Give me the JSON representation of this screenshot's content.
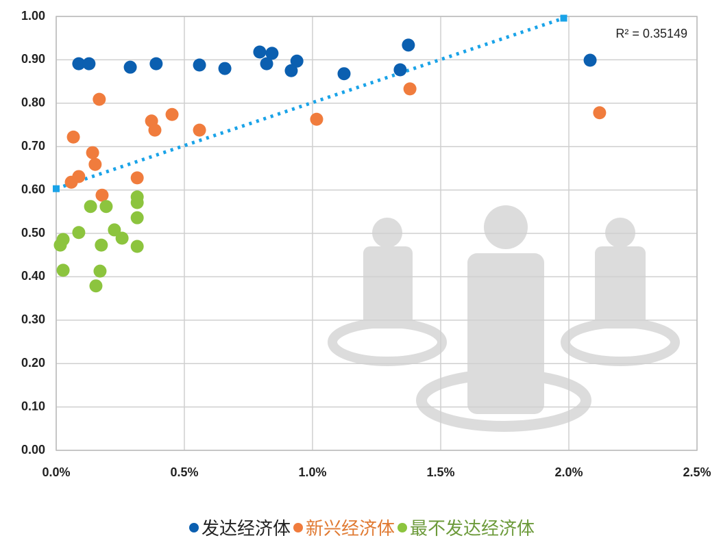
{
  "chart_data": {
    "type": "scatter",
    "xlim": [
      0,
      2.5
    ],
    "xticks": [
      {
        "value": 0,
        "label": "0.0%"
      },
      {
        "value": 0.5,
        "label": "0.5%"
      },
      {
        "value": 1,
        "label": "1.0%"
      },
      {
        "value": 1.5,
        "label": "1.5%"
      },
      {
        "value": 2,
        "label": "2.0%"
      },
      {
        "value": 2.5,
        "label": "2.5%"
      }
    ],
    "ylim": [
      0,
      1
    ],
    "yticks": [
      {
        "value": 0,
        "label": "0.00"
      },
      {
        "value": 0.1,
        "label": "0.10"
      },
      {
        "value": 0.2,
        "label": "0.20"
      },
      {
        "value": 0.3,
        "label": "0.30"
      },
      {
        "value": 0.4,
        "label": "0.40"
      },
      {
        "value": 0.5,
        "label": "0.50"
      },
      {
        "value": 0.6,
        "label": "0.60"
      },
      {
        "value": 0.7,
        "label": "0.70"
      },
      {
        "value": 0.8,
        "label": "0.80"
      },
      {
        "value": 0.9,
        "label": "0.90"
      },
      {
        "value": 1,
        "label": "1.00"
      }
    ],
    "grid": true,
    "legend": "bottom",
    "series": [
      {
        "name": "发达经济体",
        "color": "#0b5fb0",
        "text_color": "#222222",
        "x": [
          0.088,
          0.128,
          0.289,
          0.39,
          0.559,
          0.658,
          0.794,
          0.821,
          0.842,
          0.917,
          0.939,
          1.123,
          1.342,
          1.374,
          2.083
        ],
        "values": [
          0.891,
          0.891,
          0.883,
          0.891,
          0.888,
          0.88,
          0.918,
          0.891,
          0.915,
          0.875,
          0.897,
          0.868,
          0.877,
          0.934,
          0.899
        ]
      },
      {
        "name": "新兴经济体",
        "color": "#f07c3d",
        "text_color": "#e07a32",
        "x": [
          0.067,
          0.059,
          0.088,
          0.168,
          0.142,
          0.152,
          0.179,
          0.316,
          0.372,
          0.385,
          0.452,
          0.559,
          1.016,
          1.38,
          2.12
        ],
        "values": [
          0.722,
          0.618,
          0.631,
          0.809,
          0.686,
          0.659,
          0.588,
          0.628,
          0.759,
          0.738,
          0.774,
          0.738,
          0.763,
          0.833,
          0.778
        ]
      },
      {
        "name": "最不发达经济体",
        "color": "#8cc43e",
        "text_color": "#6c9a3a",
        "x": [
          0.016,
          0.027,
          0.027,
          0.088,
          0.134,
          0.195,
          0.176,
          0.171,
          0.155,
          0.227,
          0.257,
          0.316,
          0.316,
          0.316,
          0.316
        ],
        "values": [
          0.473,
          0.486,
          0.415,
          0.502,
          0.562,
          0.562,
          0.473,
          0.413,
          0.379,
          0.508,
          0.489,
          0.584,
          0.571,
          0.536,
          0.47
        ]
      }
    ],
    "trendline": {
      "x": [
        0,
        1.98
      ],
      "y": [
        0.603,
        0.996
      ],
      "color": "#1aa3e8",
      "label": "R² = 0.35149"
    }
  }
}
